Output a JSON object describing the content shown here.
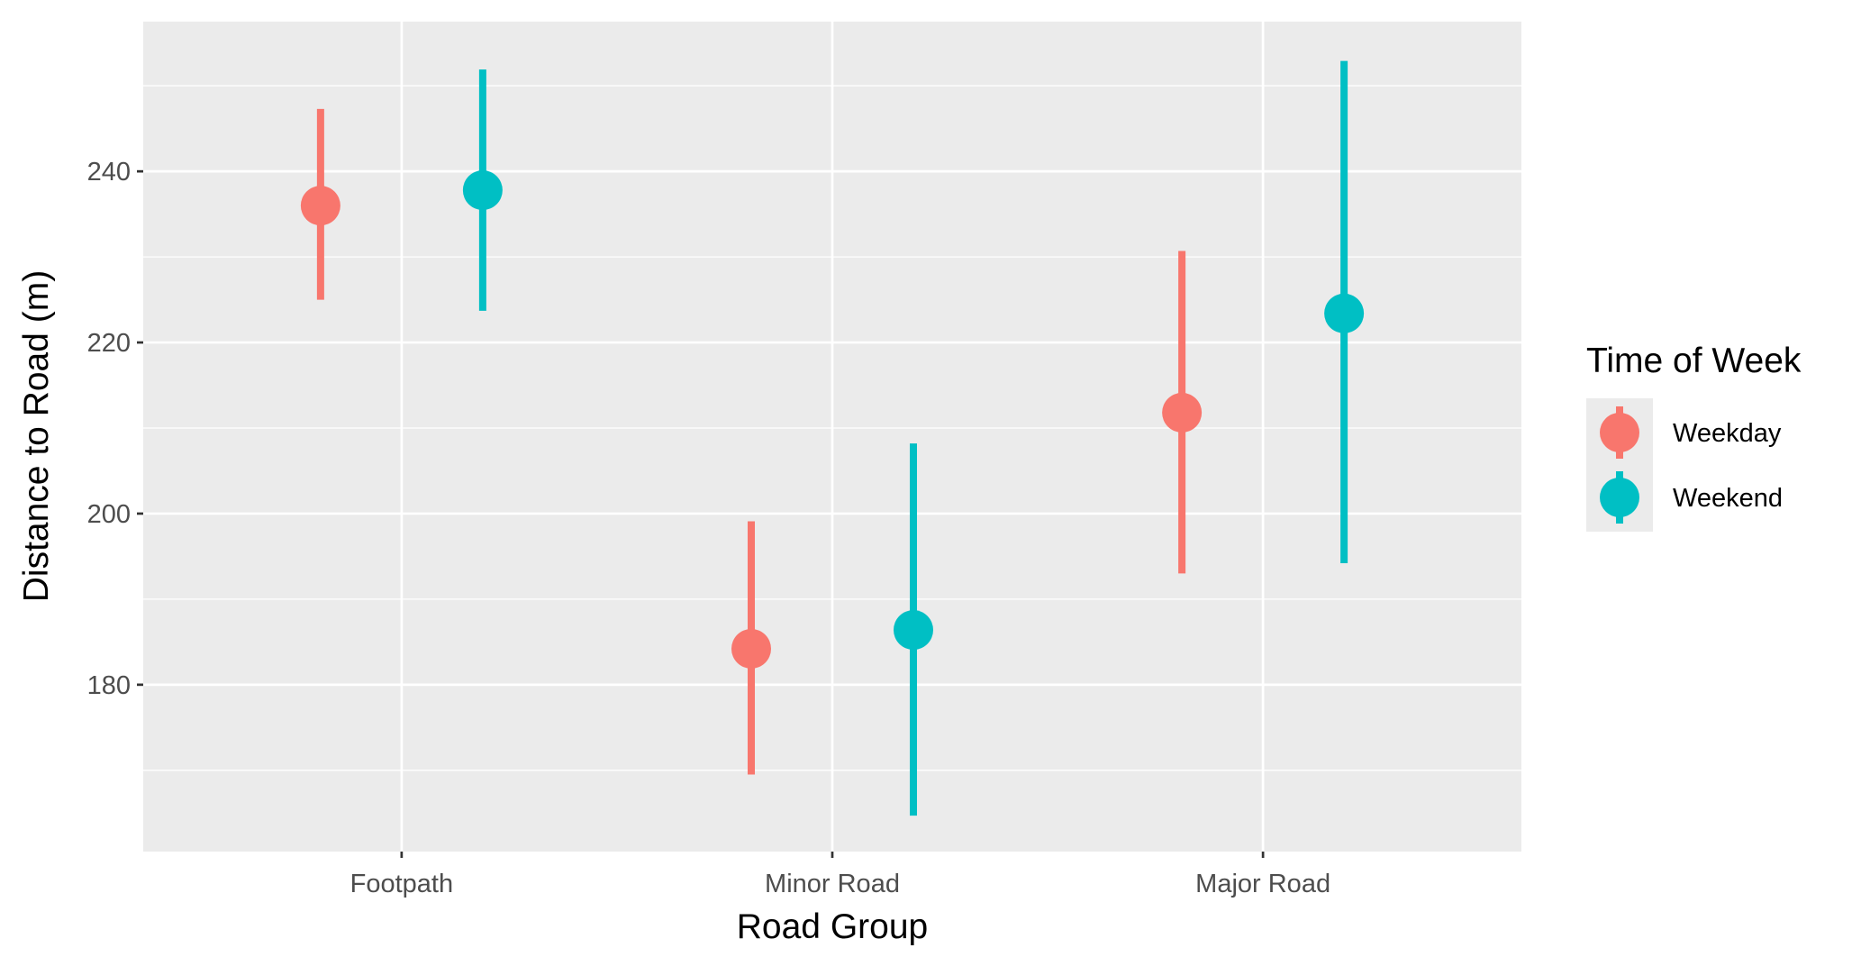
{
  "chart_data": {
    "type": "pointrange",
    "xlabel": "Road Group",
    "ylabel": "Distance to Road (m)",
    "categories": [
      "Footpath",
      "Minor Road",
      "Major Road"
    ],
    "ylim": [
      160.5,
      257.5
    ],
    "y_ticks": [
      180,
      200,
      220,
      240
    ],
    "grid": true,
    "legend": {
      "title": "Time of Week",
      "position": "right"
    },
    "series": [
      {
        "name": "Weekday",
        "color": "#F8766D",
        "points": [
          {
            "category": "Footpath",
            "y": 236.0,
            "ymin": 225.0,
            "ymax": 247.3
          },
          {
            "category": "Minor Road",
            "y": 184.2,
            "ymin": 169.5,
            "ymax": 199.1
          },
          {
            "category": "Major Road",
            "y": 211.8,
            "ymin": 193.0,
            "ymax": 230.7
          }
        ]
      },
      {
        "name": "Weekend",
        "color": "#00BFC4",
        "points": [
          {
            "category": "Footpath",
            "y": 237.8,
            "ymin": 223.7,
            "ymax": 251.9
          },
          {
            "category": "Minor Road",
            "y": 186.4,
            "ymin": 164.7,
            "ymax": 208.2
          },
          {
            "category": "Major Road",
            "y": 223.4,
            "ymin": 194.2,
            "ymax": 252.9
          }
        ]
      }
    ]
  },
  "colors": {
    "panel_background": "#EBEBEB",
    "grid": "#FFFFFF"
  }
}
